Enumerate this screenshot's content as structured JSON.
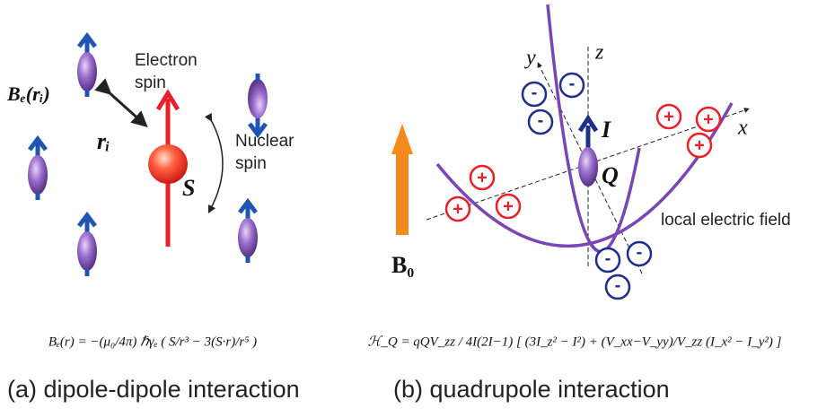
{
  "panel_a": {
    "electron_spin": [
      "Electron",
      "spin"
    ],
    "nuclear_spin": [
      "Nuclear",
      "spin"
    ],
    "field_label": "Bₑ(rᵢ)",
    "distance_label": "rᵢ",
    "spin_label": "S",
    "formula": "Bₑ(r) = −(μ₀/4π) ℏγₑ ( S/r³ − 3(S·r)/r⁵ )",
    "caption": "(a) dipole-dipole interaction"
  },
  "panel_b": {
    "axis_x": "x",
    "axis_y": "y",
    "axis_z": "z",
    "spin_label": "I",
    "quadrupole_label": "Q",
    "field_label": "B₀",
    "field_curve_label": "local electric field",
    "positive_charges": [
      "+",
      "+",
      "+",
      "+",
      "+",
      "+"
    ],
    "negative_charges": [
      "-",
      "-",
      "-",
      "-",
      "-",
      "-"
    ],
    "formula": "ℋ_Q = qQV_zz / 4I(2I−1) [ (3I_z² − I²) + (V_xx−V_yy)/V_zz (I_x² − I_y²) ]",
    "caption": "(b) quadrupole interaction"
  }
}
